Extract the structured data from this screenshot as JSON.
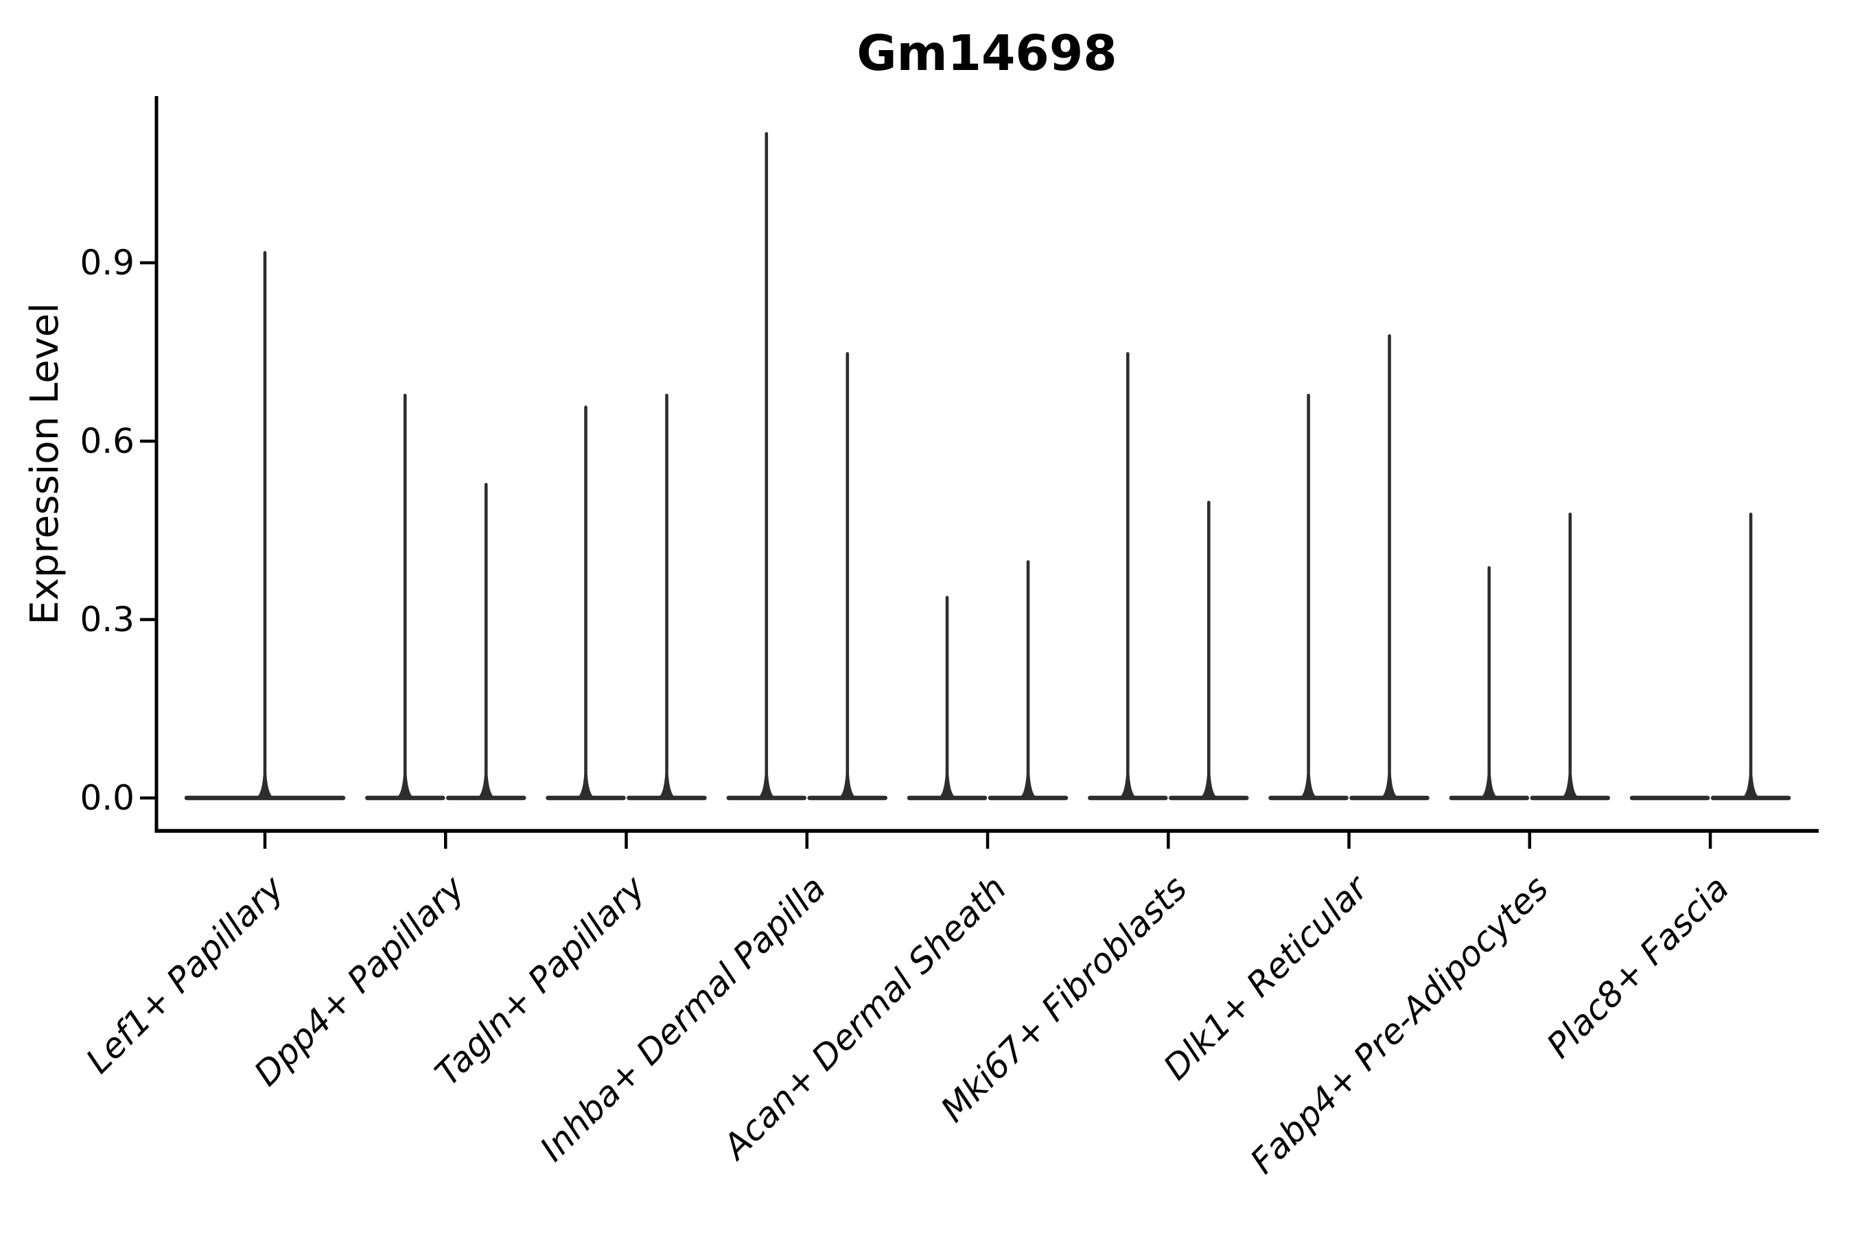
{
  "figure": {
    "title": "Gm14698",
    "y_axis_label": "Expression Level"
  },
  "colors": {
    "background": "#ffffff",
    "axis": "#000000",
    "text": "#000000",
    "violin": "#2d2d2d"
  },
  "chart_data": {
    "type": "violin",
    "title": "Gm14698",
    "xlabel": "",
    "ylabel": "Expression Level",
    "ylim": [
      0,
      1.18
    ],
    "y_ticks": [
      0.0,
      0.3,
      0.6,
      0.9
    ],
    "y_tick_labels": [
      "0.0",
      "0.3",
      "0.6",
      "0.9"
    ],
    "x_tick_rotation": 45,
    "grid": false,
    "legend": "none",
    "categories": [
      "Lef1+ Papillary",
      "Dpp4+ Papillary",
      "Tagln+ Papillary",
      "Inhba+ Dermal Papilla",
      "Acan+ Dermal Sheath",
      "Mki67+ Fibroblasts",
      "Dlk1+ Reticular",
      "Fabp4+ Pre-Adipocytes",
      "Plac8+ Fascia"
    ],
    "series": [
      {
        "name": "violin-left",
        "max_values": [
          0.92,
          0.68,
          0.66,
          1.12,
          0.34,
          0.75,
          0.68,
          0.39,
          0.0
        ]
      },
      {
        "name": "violin-right",
        "max_values": [
          null,
          0.53,
          0.68,
          0.75,
          0.4,
          0.5,
          0.78,
          0.48,
          0.48
        ]
      }
    ]
  }
}
